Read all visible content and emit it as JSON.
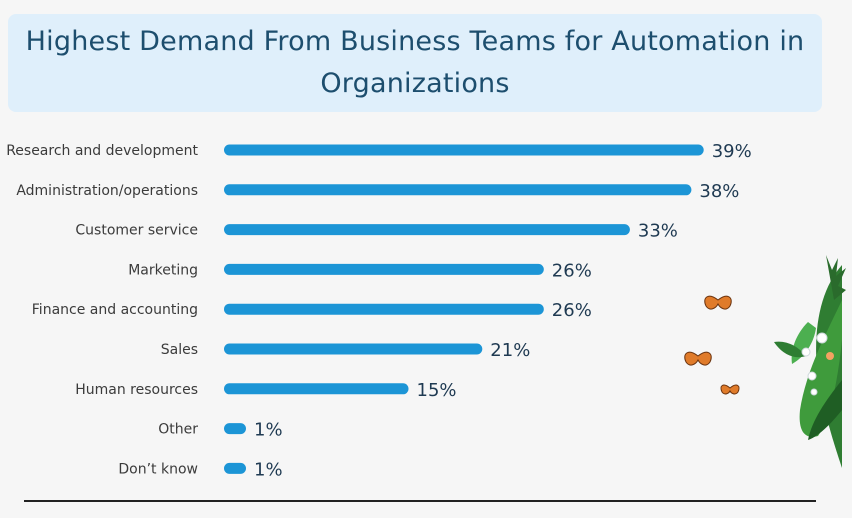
{
  "title": "Highest Demand From Business Teams for Automation in Organizations",
  "colors": {
    "bar": "#1c95d6",
    "title_bg": "#dfeffb",
    "title_text": "#1d4e6e"
  },
  "chart_data": {
    "type": "bar",
    "orientation": "horizontal",
    "title": "Highest Demand From Business Teams for Automation in Organizations",
    "categories": [
      "Research and development",
      "Administration/operations",
      "Customer service",
      "Marketing",
      "Finance and accounting",
      "Sales",
      "Human resources",
      "Other",
      "Don’t know"
    ],
    "values": [
      39,
      38,
      33,
      26,
      26,
      21,
      15,
      1,
      1
    ],
    "value_labels": [
      "39%",
      "38%",
      "33%",
      "26%",
      "26%",
      "21%",
      "15%",
      "1%",
      "1%"
    ],
    "unit": "%",
    "grid": false
  }
}
